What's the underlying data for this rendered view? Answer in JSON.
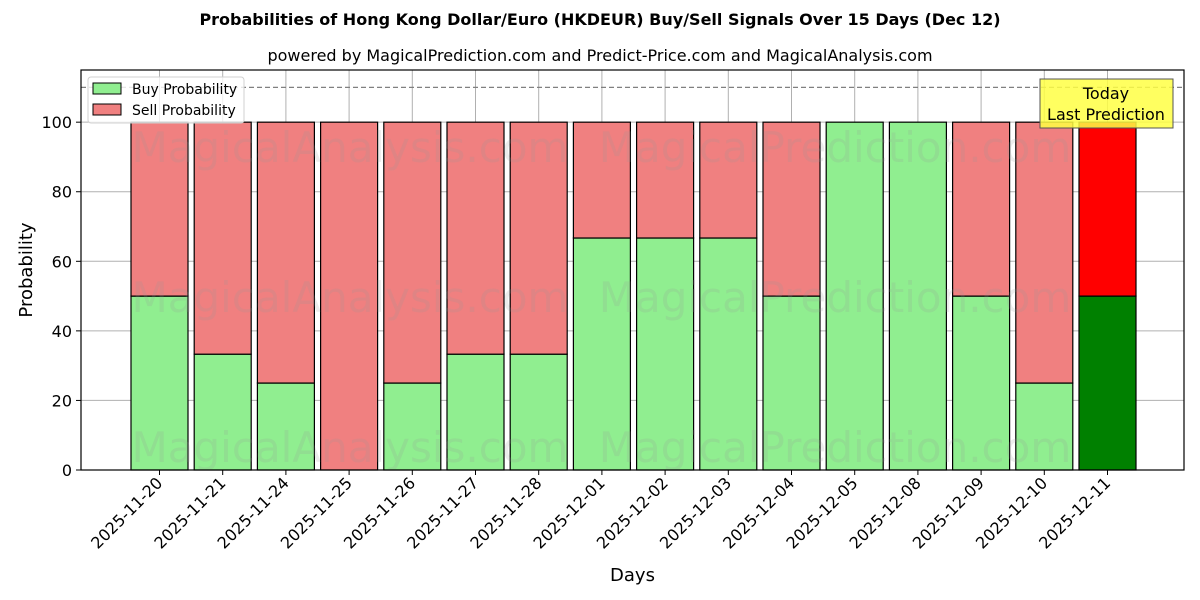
{
  "title": "Probabilities of Hong Kong Dollar/Euro (HKDEUR) Buy/Sell Signals Over 15 Days (Dec 12)",
  "subtitle": "powered by MagicalPrediction.com and Predict-Price.com and MagicalAnalysis.com",
  "watermarks": [
    "MagicalAnalysis.com",
    "MagicalPrediction.com"
  ],
  "annotation": {
    "line1": "Today",
    "line2": "Last Prediction"
  },
  "colors": {
    "buy": "#90ee90",
    "sell": "#f08080",
    "buy_today": "#008000",
    "sell_today": "#ff0000",
    "annotation_bg": "#ffff44"
  },
  "chart_data": {
    "type": "bar",
    "stacked": true,
    "title": "Probabilities of Hong Kong Dollar/Euro (HKDEUR) Buy/Sell Signals Over 15 Days (Dec 12)",
    "subtitle": "powered by MagicalPrediction.com and Predict-Price.com and MagicalAnalysis.com",
    "xlabel": "Days",
    "ylabel": "Probability",
    "ylim": [
      0,
      115
    ],
    "yticks": [
      0,
      20,
      40,
      60,
      80,
      100
    ],
    "grid": true,
    "legend_position": "upper left",
    "reference_line": {
      "y": 110,
      "style": "dashed"
    },
    "categories": [
      "2025-11-20",
      "2025-11-21",
      "2025-11-24",
      "2025-11-25",
      "2025-11-26",
      "2025-11-27",
      "2025-11-28",
      "2025-12-01",
      "2025-12-02",
      "2025-12-03",
      "2025-12-04",
      "2025-12-05",
      "2025-12-08",
      "2025-12-09",
      "2025-12-10",
      "2025-12-11"
    ],
    "series": [
      {
        "name": "Buy Probability",
        "values": [
          50,
          33.3,
          25,
          0,
          25,
          33.3,
          33.3,
          66.7,
          66.7,
          66.7,
          50,
          100,
          100,
          50,
          25,
          50
        ]
      },
      {
        "name": "Sell Probability",
        "values": [
          50,
          66.7,
          75,
          100,
          75,
          66.7,
          66.7,
          33.3,
          33.3,
          33.3,
          50,
          0,
          0,
          50,
          75,
          50
        ]
      }
    ]
  }
}
